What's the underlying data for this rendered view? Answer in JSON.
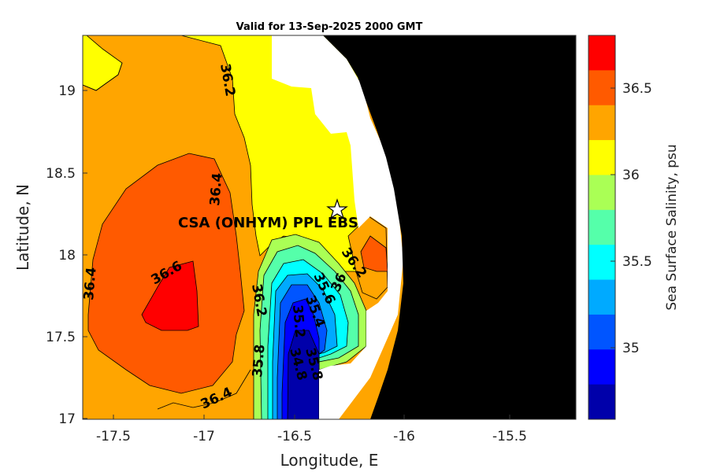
{
  "title": "Valid for 13-Sep-2025 2000 GMT",
  "x_axis": {
    "label": "Longitude, E",
    "ticks": [
      "-17.5",
      "-17",
      "-16.5",
      "-16",
      "-15.5"
    ]
  },
  "y_axis": {
    "label": "Latitude, N",
    "ticks": [
      "19",
      "18.5",
      "18",
      "17.5",
      "17"
    ]
  },
  "colorbar": {
    "label": "Sea Surface Salinity, psu",
    "ticks": [
      "36.5",
      "36",
      "35.5",
      "35"
    ],
    "levels": [
      {
        "value": "36.8",
        "color": "#ff0000"
      },
      {
        "value": "36.6",
        "color": "#ff5a00"
      },
      {
        "value": "36.4",
        "color": "#ffa500"
      },
      {
        "value": "36.2",
        "color": "#ffff00"
      },
      {
        "value": "36.0",
        "color": "#aaff55"
      },
      {
        "value": "35.8",
        "color": "#55ffaa"
      },
      {
        "value": "35.6",
        "color": "#00ffff"
      },
      {
        "value": "35.4",
        "color": "#00aaff"
      },
      {
        "value": "35.2",
        "color": "#0055ff"
      },
      {
        "value": "35.0",
        "color": "#0000ff"
      },
      {
        "value": "34.8",
        "color": "#0000aa"
      }
    ]
  },
  "contour_labels": [
    "36.2",
    "36.4",
    "36.6",
    "36.4",
    "36.2",
    "36.4",
    "36.2",
    "36",
    "35.6",
    "35.4",
    "35.2",
    "35.8",
    "34.8",
    "35.8"
  ],
  "site": {
    "label": "CSA (ONHYM) PPL EBS",
    "marker": "star-icon"
  },
  "land_color": "#000000"
}
